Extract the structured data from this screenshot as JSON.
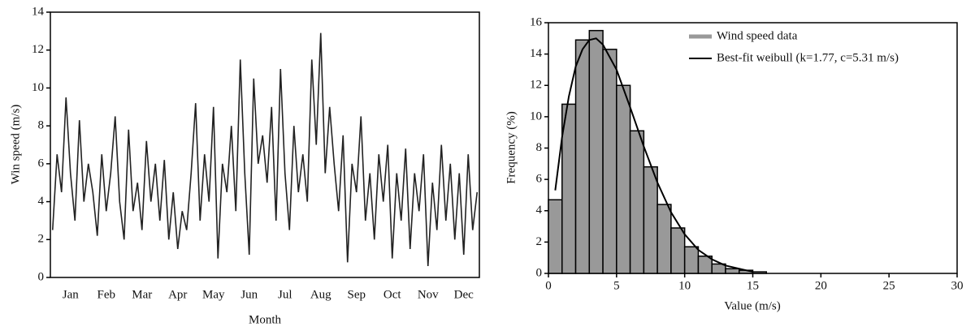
{
  "chart_data": [
    {
      "type": "line",
      "y_label": "Win speed (m/s)",
      "x_label": "Month",
      "categories": [
        null,
        null,
        null,
        null,
        "Jan",
        null,
        null,
        null,
        null,
        null,
        null,
        null,
        "Feb",
        null,
        null,
        null,
        null,
        null,
        null,
        null,
        "Mar",
        null,
        null,
        null,
        null,
        null,
        null,
        null,
        "Apr",
        null,
        null,
        null,
        null,
        null,
        null,
        null,
        "May",
        null,
        null,
        null,
        null,
        null,
        null,
        null,
        "Jun",
        null,
        null,
        null,
        null,
        null,
        null,
        null,
        "Jul",
        null,
        null,
        null,
        null,
        null,
        null,
        null,
        "Aug",
        null,
        null,
        null,
        null,
        null,
        null,
        null,
        "Sep",
        null,
        null,
        null,
        null,
        null,
        null,
        null,
        "Oct",
        null,
        null,
        null,
        null,
        null,
        null,
        null,
        "Nov",
        null,
        null,
        null,
        null,
        null,
        null,
        null,
        "Dec",
        null,
        null,
        null
      ],
      "values": [
        2.5,
        6.5,
        4.5,
        9.5,
        5.5,
        3.0,
        8.3,
        4.0,
        6.0,
        4.5,
        2.2,
        6.5,
        3.5,
        5.5,
        8.5,
        4.0,
        2.0,
        7.8,
        3.5,
        5.0,
        2.5,
        7.2,
        4.0,
        6.0,
        3.0,
        6.2,
        2.0,
        4.5,
        1.5,
        3.5,
        2.5,
        5.5,
        9.2,
        3.0,
        6.5,
        4.0,
        9.0,
        1.0,
        6.0,
        4.5,
        8.0,
        3.5,
        11.5,
        5.5,
        1.2,
        10.5,
        6.0,
        7.5,
        5.0,
        9.0,
        3.0,
        11.0,
        5.5,
        2.5,
        8.0,
        4.5,
        6.5,
        4.0,
        11.5,
        7.0,
        12.9,
        5.5,
        9.0,
        6.0,
        3.5,
        7.5,
        0.8,
        6.0,
        4.5,
        8.5,
        3.0,
        5.5,
        2.0,
        6.5,
        4.0,
        7.0,
        1.0,
        5.5,
        3.0,
        6.8,
        1.5,
        5.5,
        3.5,
        6.5,
        0.6,
        5.0,
        2.5,
        7.0,
        3.0,
        6.0,
        2.0,
        5.5,
        1.2,
        6.5,
        2.5,
        4.5
      ],
      "color": "#222222",
      "ylim": [
        0,
        14
      ],
      "yticks": [
        0,
        2,
        4,
        6,
        8,
        10,
        12,
        14
      ],
      "grid": false
    },
    {
      "type": "histogram",
      "y_label": "Frequency (%)",
      "x_label": "Value (m/s)",
      "bars": {
        "name": "Wind speed data",
        "color": "#999999",
        "bins": [
          0,
          1,
          2,
          3,
          4,
          5,
          6,
          7,
          8,
          9,
          10,
          11,
          12,
          13,
          14,
          15,
          16
        ],
        "values": [
          4.7,
          10.8,
          14.9,
          15.5,
          14.3,
          12.0,
          9.1,
          6.8,
          4.4,
          2.9,
          1.7,
          1.1,
          0.6,
          0.3,
          0.2,
          0.1
        ]
      },
      "curve": {
        "name": "Best-fit weibull (k=1.77, c=5.31 m/s)",
        "color": "#000000",
        "x": [
          0.5,
          1,
          1.5,
          2,
          2.5,
          3,
          3.5,
          4,
          5,
          6,
          7,
          8,
          9,
          10,
          11,
          12,
          13,
          14,
          15
        ],
        "values": [
          5.3,
          8.7,
          11.3,
          13.2,
          14.3,
          14.9,
          15.0,
          14.6,
          13.0,
          10.6,
          8.1,
          5.8,
          3.9,
          2.5,
          1.5,
          0.9,
          0.5,
          0.3,
          0.1
        ]
      },
      "xlim": [
        0,
        30
      ],
      "xticks": [
        0,
        5,
        10,
        15,
        20,
        25,
        30
      ],
      "ylim": [
        0,
        16
      ],
      "yticks": [
        0,
        2,
        4,
        6,
        8,
        10,
        12,
        14,
        16
      ],
      "grid": false,
      "legend": "top-right"
    }
  ]
}
